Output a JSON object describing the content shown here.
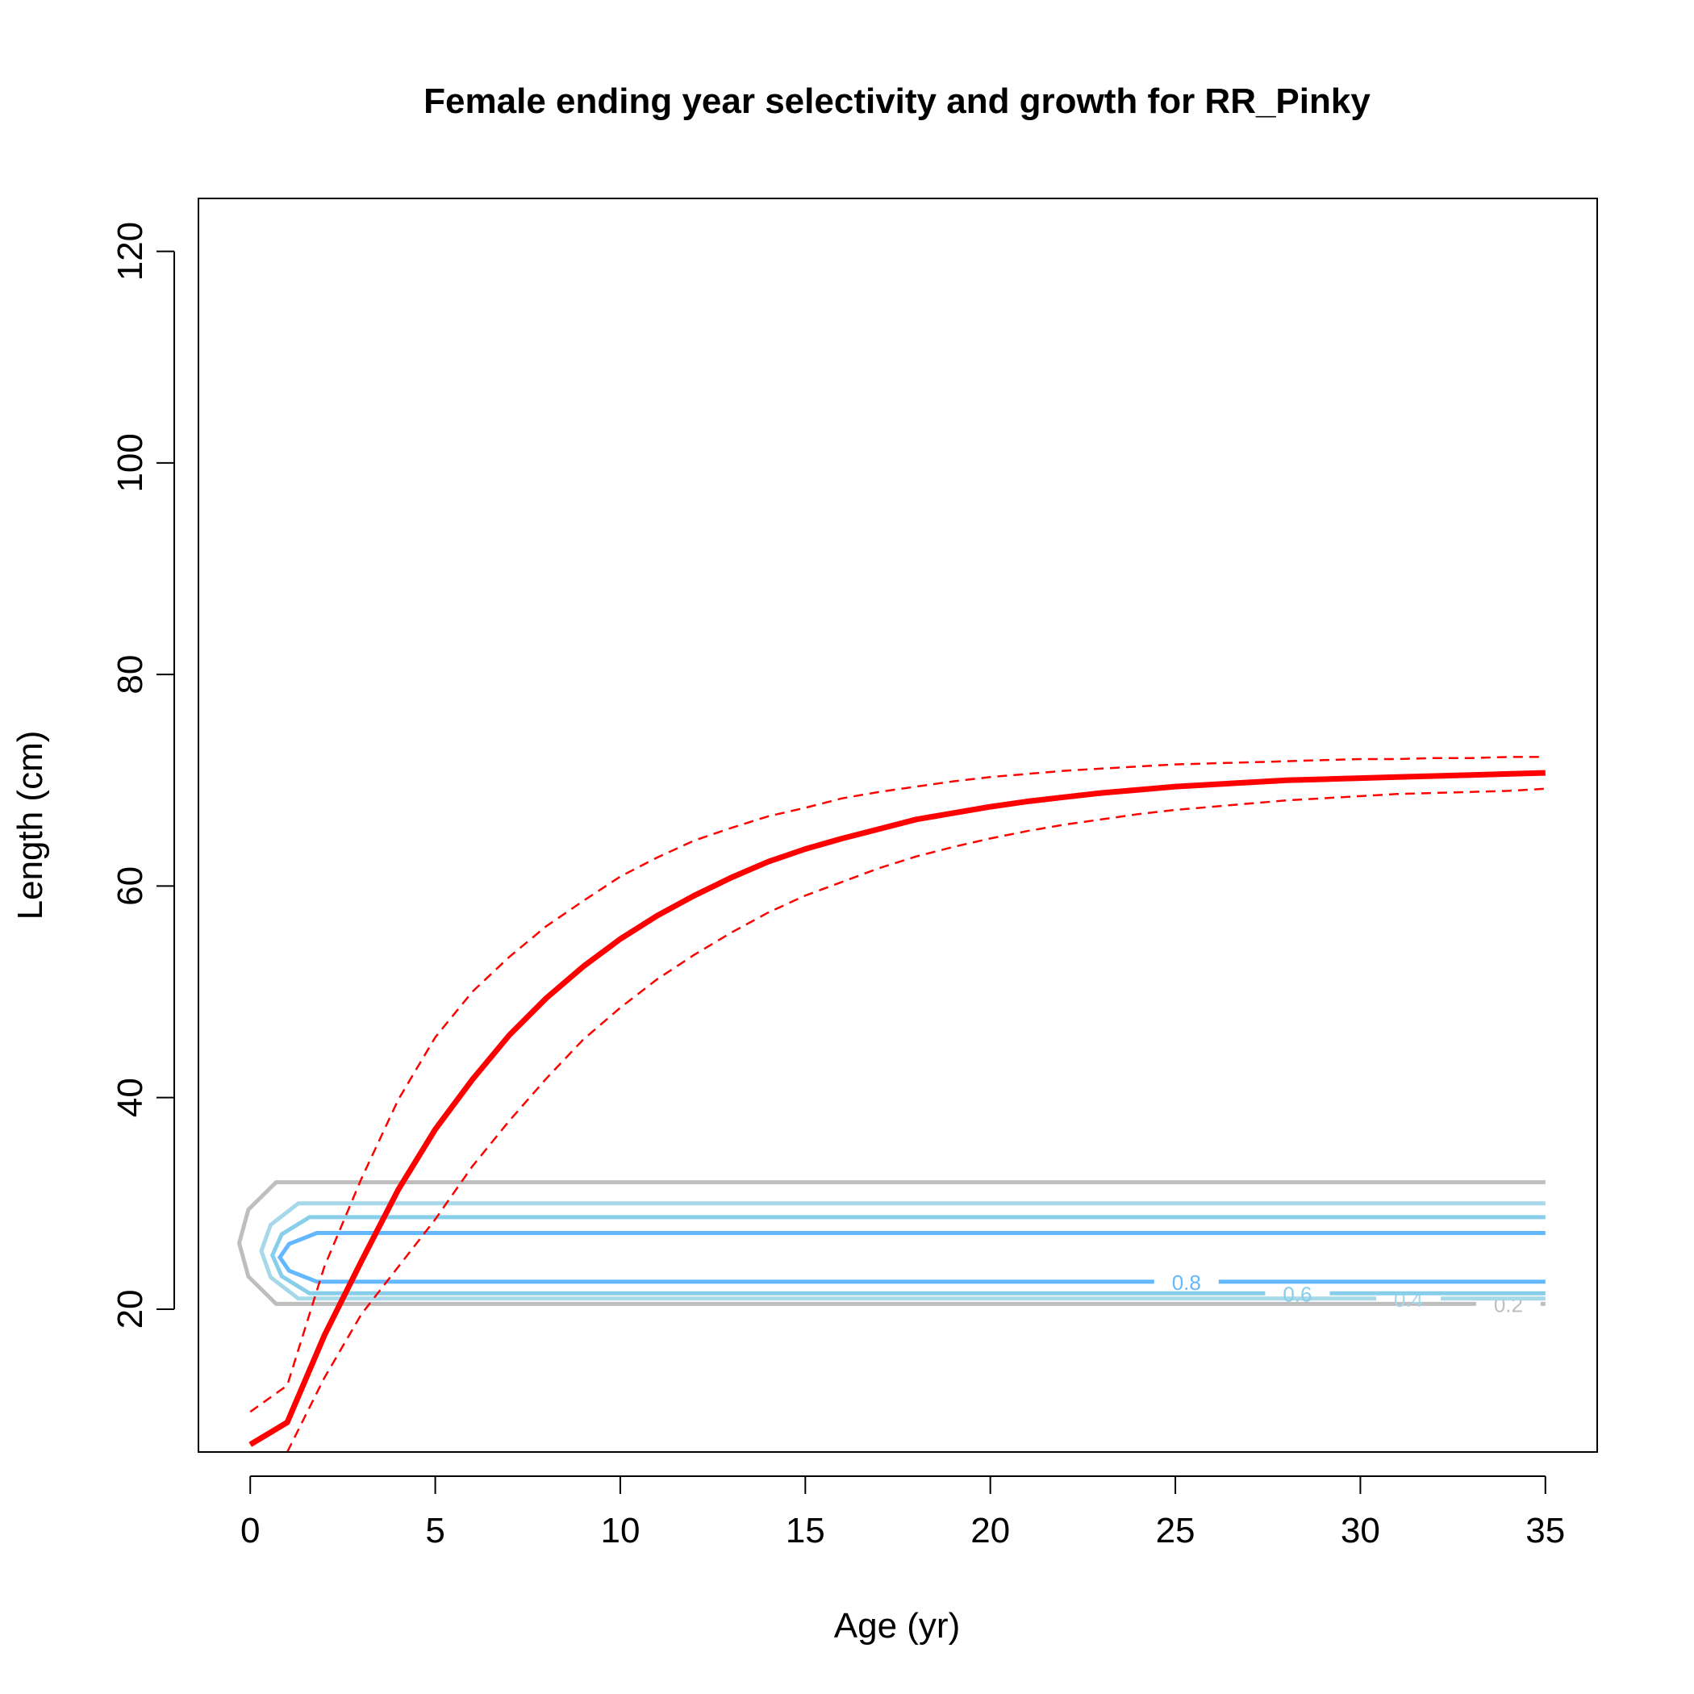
{
  "chart_data": {
    "type": "line",
    "title": "Female ending year selectivity and growth for RR_Pinky",
    "xlabel": "Age (yr)",
    "ylabel": "Length (cm)",
    "xlim": [
      -1.4,
      36.4
    ],
    "ylim": [
      6.5,
      125.0
    ],
    "x_ticks": [
      0,
      5,
      10,
      15,
      20,
      25,
      30,
      35
    ],
    "y_ticks": [
      20,
      40,
      60,
      80,
      100,
      120
    ],
    "grid": false,
    "series": [
      {
        "role": "mean length-at-age",
        "color": "#ff0000",
        "style": "solid",
        "x": [
          0,
          1,
          2,
          3,
          4,
          5,
          6,
          7,
          8,
          9,
          10,
          11,
          12,
          13,
          14,
          15,
          16,
          17,
          18,
          19,
          20,
          21,
          22,
          23,
          24,
          25,
          26,
          27,
          28,
          29,
          30,
          31,
          32,
          33,
          34,
          35
        ],
        "y": [
          7.2,
          9.3,
          17.5,
          24.5,
          31.3,
          37.0,
          41.7,
          45.9,
          49.4,
          52.4,
          55.0,
          57.2,
          59.1,
          60.8,
          62.3,
          63.5,
          64.5,
          65.4,
          66.3,
          66.9,
          67.5,
          68.0,
          68.4,
          68.8,
          69.1,
          69.4,
          69.6,
          69.8,
          70.0,
          70.1,
          70.2,
          70.3,
          70.4,
          70.5,
          70.6,
          70.7
        ]
      },
      {
        "role": "upper interval",
        "color": "#ff0000",
        "style": "dashed",
        "x": [
          0,
          1,
          2,
          3,
          4,
          5,
          6,
          7,
          8,
          9,
          10,
          11,
          12,
          13,
          14,
          15,
          16,
          17,
          18,
          19,
          20,
          21,
          22,
          23,
          24,
          25,
          26,
          27,
          28,
          29,
          30,
          31,
          32,
          33,
          34,
          35
        ],
        "y": [
          10.3,
          12.8,
          24.0,
          32.3,
          39.8,
          45.7,
          50.0,
          53.3,
          56.2,
          58.6,
          60.9,
          62.7,
          64.3,
          65.5,
          66.6,
          67.4,
          68.3,
          68.9,
          69.4,
          69.9,
          70.3,
          70.6,
          70.9,
          71.1,
          71.3,
          71.5,
          71.6,
          71.7,
          71.8,
          71.9,
          72.0,
          72.0,
          72.1,
          72.1,
          72.2,
          72.2
        ]
      },
      {
        "role": "lower interval",
        "color": "#ff0000",
        "style": "dashed",
        "x": [
          1,
          2,
          3,
          4,
          5,
          6,
          7,
          8,
          9,
          10,
          11,
          12,
          13,
          14,
          15,
          16,
          17,
          18,
          19,
          20,
          21,
          22,
          23,
          24,
          25,
          26,
          27,
          28,
          29,
          30,
          31,
          32,
          33,
          34,
          35
        ],
        "y": [
          6.5,
          13.5,
          19.5,
          24.0,
          28.5,
          33.5,
          37.8,
          41.8,
          45.5,
          48.5,
          51.2,
          53.5,
          55.6,
          57.5,
          59.1,
          60.4,
          61.7,
          62.8,
          63.7,
          64.5,
          65.2,
          65.8,
          66.3,
          66.8,
          67.2,
          67.5,
          67.8,
          68.1,
          68.3,
          68.5,
          68.7,
          68.8,
          68.9,
          69.0,
          69.2
        ]
      }
    ],
    "contours": [
      {
        "level": "0.2",
        "color": "#bebebe",
        "upper": 32.0,
        "lower": 20.5,
        "left_age": -0.3,
        "label_age": 34.0
      },
      {
        "level": "0.4",
        "color": "#a6d8ea",
        "upper": 30.0,
        "lower": 21.0,
        "left_age": 0.3,
        "label_age": 31.3
      },
      {
        "level": "0.6",
        "color": "#87ceeb",
        "upper": 28.7,
        "lower": 21.5,
        "left_age": 0.6,
        "label_age": 28.3
      },
      {
        "level": "0.8",
        "color": "#63b8ff",
        "upper": 27.2,
        "lower": 22.6,
        "left_age": 0.8,
        "label_age": 25.3
      }
    ]
  }
}
